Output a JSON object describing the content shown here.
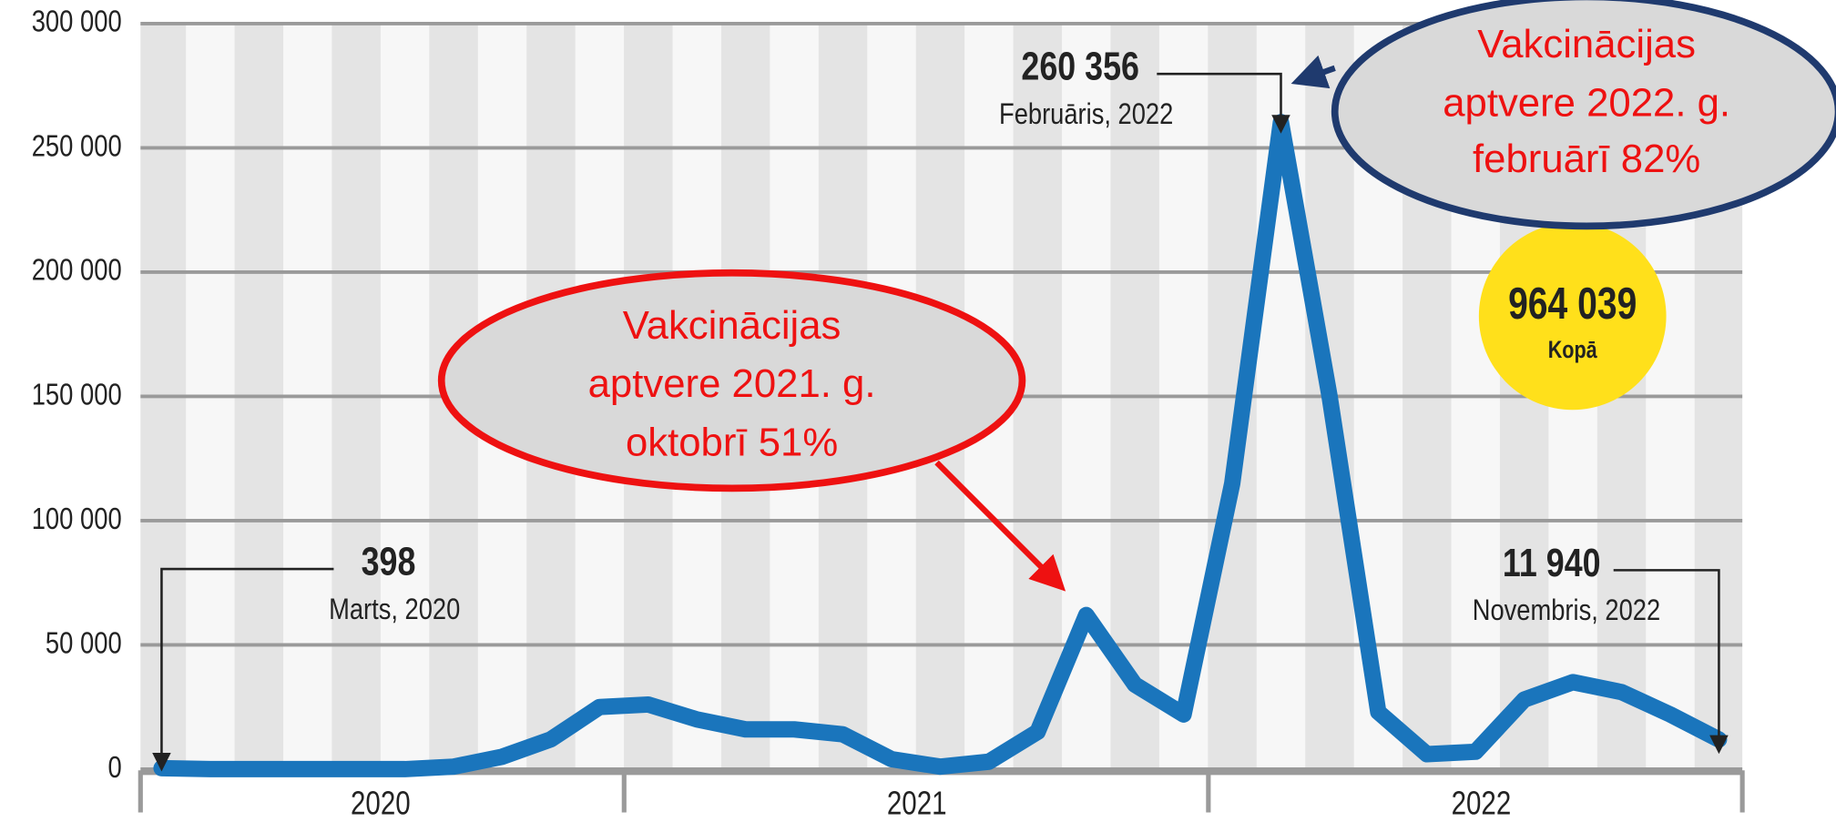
{
  "chart_data": {
    "type": "line",
    "categories": [
      null,
      null,
      null,
      null,
      null,
      null,
      null,
      null,
      null,
      null,
      null,
      null,
      null,
      null,
      null,
      null,
      null,
      null,
      null,
      null,
      null,
      null,
      null,
      null,
      null,
      null,
      null,
      null,
      null,
      null,
      null,
      null,
      null
    ],
    "year_labels": [
      "2020",
      "2021",
      "2022"
    ],
    "series": [
      {
        "color": "#1a75bc",
        "values": [
          398,
          0,
          0,
          0,
          0,
          0,
          1000,
          5000,
          12000,
          25000,
          26000,
          20000,
          16000,
          16000,
          14000,
          4000,
          1000,
          3000,
          15000,
          62000,
          34000,
          22000,
          115000,
          260356,
          150000,
          23000,
          6000,
          7000,
          28000,
          35000,
          31000,
          22000,
          11940
        ],
        "value_labels": [
          "398",
          null,
          null,
          null,
          null,
          null,
          null,
          null,
          null,
          null,
          null,
          null,
          null,
          null,
          null,
          null,
          null,
          null,
          null,
          null,
          null,
          null,
          null,
          "260 356",
          null,
          null,
          null,
          null,
          null,
          null,
          null,
          null,
          "11 940"
        ],
        "date_labels": [
          "Marts, 2020",
          null,
          null,
          null,
          null,
          null,
          null,
          null,
          null,
          null,
          null,
          null,
          null,
          null,
          null,
          null,
          null,
          null,
          null,
          null,
          null,
          null,
          null,
          "Februāris, 2022",
          null,
          null,
          null,
          null,
          null,
          null,
          null,
          null,
          "Novembris, 2022"
        ]
      }
    ],
    "ylim": [
      0,
      300000
    ],
    "yticks": [
      0,
      {
        "value": 50000,
        "label": "50 000"
      },
      {
        "value": 100000,
        "label": "100 000"
      },
      {
        "value": 150000,
        "label": "150 000"
      },
      {
        "value": 200000,
        "label": "200 000"
      },
      {
        "value": 250000,
        "label": "250 000"
      },
      {
        "value": 300000,
        "label": "300 000"
      }
    ],
    "grid": true,
    "total": 964039,
    "total_label": "964 039",
    "total_caption": "Kopā",
    "callouts": [
      {
        "lines": [
          "Vakcinācijas",
          "aptvere 2021. g.",
          "oktobrī 51%"
        ],
        "color": "#ee1111"
      },
      {
        "lines": [
          "Vakcinācijas",
          "aptvere 2022. g.",
          "februārī  82%"
        ],
        "color": "#ee1111"
      }
    ]
  }
}
